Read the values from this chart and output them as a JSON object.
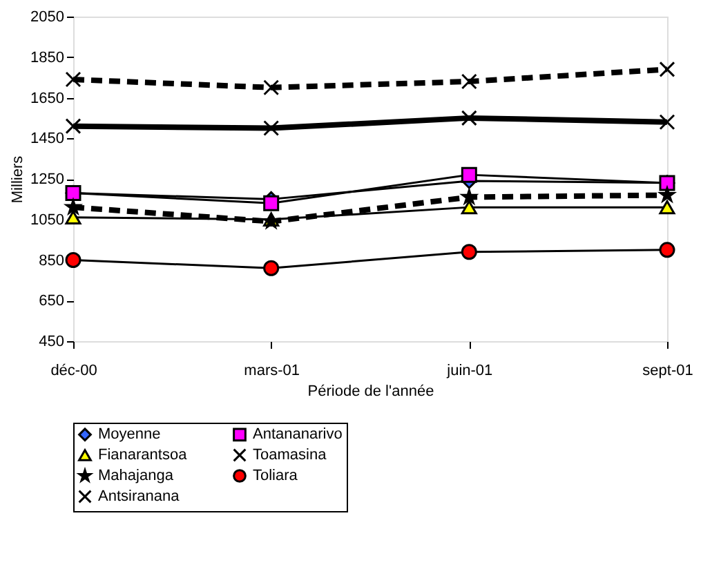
{
  "chart_data": {
    "type": "line",
    "xlabel": "Période de l'année",
    "ylabel": "Milliers",
    "categories": [
      "déc-00",
      "mars-01",
      "juin-01",
      "sept-01"
    ],
    "ylim": [
      450,
      2050
    ],
    "yticks": [
      450,
      650,
      850,
      1050,
      1250,
      1450,
      1650,
      1850,
      2050
    ],
    "grid": false,
    "legend": "bottom",
    "series": [
      {
        "name": "Moyenne",
        "color": "#3366ff",
        "marker": "diamond",
        "line_style": "solid",
        "values": [
          1180,
          1150,
          1240,
          1230
        ]
      },
      {
        "name": "Antananarivo",
        "color": "#ff00ff",
        "marker": "square",
        "line_style": "solid",
        "values": [
          1180,
          1130,
          1270,
          1230
        ]
      },
      {
        "name": "Fianarantsoa",
        "color": "#ffff00",
        "marker": "triangle",
        "line_style": "solid",
        "values": [
          1060,
          1050,
          1110,
          1110
        ]
      },
      {
        "name": "Toamasina",
        "color": "#000000",
        "marker": "cross",
        "line_style": "solid",
        "values": [
          1510,
          1500,
          1550,
          1530
        ]
      },
      {
        "name": "Mahajanga",
        "color": "#000000",
        "marker": "star",
        "line_style": "dashed",
        "values": [
          1110,
          1040,
          1160,
          1170
        ]
      },
      {
        "name": "Toliara",
        "color": "#ff0000",
        "marker": "circle",
        "line_style": "solid",
        "values": [
          850,
          810,
          890,
          900
        ]
      },
      {
        "name": "Antsiranana",
        "color": "#000000",
        "marker": "cross",
        "line_style": "dashed",
        "values": [
          1740,
          1700,
          1730,
          1790
        ]
      }
    ]
  }
}
